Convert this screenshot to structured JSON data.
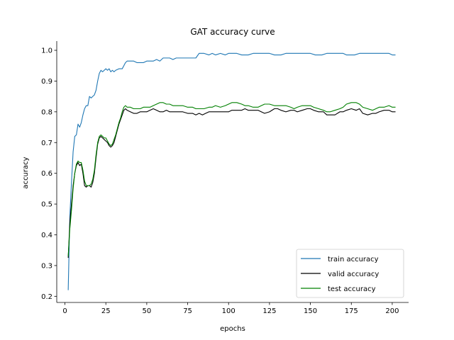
{
  "chart_data": {
    "type": "line",
    "title": "GAT accuracy curve",
    "xlabel": "epochs",
    "ylabel": "accuracy",
    "xlim": [
      -5,
      210
    ],
    "ylim": [
      0.18,
      1.03
    ],
    "xticks": [
      0,
      25,
      50,
      75,
      100,
      125,
      150,
      175,
      200
    ],
    "yticks": [
      0.2,
      0.3,
      0.4,
      0.5,
      0.6,
      0.7,
      0.8,
      0.9,
      1.0
    ],
    "xtick_labels": [
      "0",
      "25",
      "50",
      "75",
      "100",
      "125",
      "150",
      "175",
      "200"
    ],
    "ytick_labels": [
      "0.2",
      "0.3",
      "0.4",
      "0.5",
      "0.6",
      "0.7",
      "0.8",
      "0.9",
      "1.0"
    ],
    "grid": false,
    "legend_position": "lower-right",
    "series": [
      {
        "name": "train accuracy",
        "color": "#1f77b4",
        "points": [
          [
            2,
            0.22
          ],
          [
            3,
            0.46
          ],
          [
            4,
            0.57
          ],
          [
            5,
            0.67
          ],
          [
            6,
            0.72
          ],
          [
            7,
            0.725
          ],
          [
            8,
            0.76
          ],
          [
            9,
            0.75
          ],
          [
            10,
            0.765
          ],
          [
            11,
            0.79
          ],
          [
            12,
            0.81
          ],
          [
            13,
            0.82
          ],
          [
            14,
            0.82
          ],
          [
            15,
            0.85
          ],
          [
            16,
            0.845
          ],
          [
            17,
            0.85
          ],
          [
            18,
            0.855
          ],
          [
            19,
            0.87
          ],
          [
            20,
            0.9
          ],
          [
            21,
            0.925
          ],
          [
            22,
            0.935
          ],
          [
            23,
            0.93
          ],
          [
            24,
            0.935
          ],
          [
            25,
            0.94
          ],
          [
            26,
            0.935
          ],
          [
            27,
            0.94
          ],
          [
            28,
            0.93
          ],
          [
            29,
            0.935
          ],
          [
            30,
            0.93
          ],
          [
            31,
            0.935
          ],
          [
            33,
            0.94
          ],
          [
            35,
            0.94
          ],
          [
            36,
            0.95
          ],
          [
            37,
            0.96
          ],
          [
            38,
            0.965
          ],
          [
            40,
            0.965
          ],
          [
            42,
            0.965
          ],
          [
            44,
            0.96
          ],
          [
            46,
            0.96
          ],
          [
            48,
            0.96
          ],
          [
            50,
            0.965
          ],
          [
            52,
            0.965
          ],
          [
            54,
            0.965
          ],
          [
            56,
            0.97
          ],
          [
            58,
            0.965
          ],
          [
            60,
            0.975
          ],
          [
            62,
            0.975
          ],
          [
            64,
            0.975
          ],
          [
            66,
            0.97
          ],
          [
            68,
            0.975
          ],
          [
            70,
            0.975
          ],
          [
            75,
            0.975
          ],
          [
            80,
            0.975
          ],
          [
            82,
            0.99
          ],
          [
            85,
            0.99
          ],
          [
            88,
            0.985
          ],
          [
            90,
            0.99
          ],
          [
            92,
            0.985
          ],
          [
            95,
            0.99
          ],
          [
            98,
            0.985
          ],
          [
            100,
            0.99
          ],
          [
            105,
            0.99
          ],
          [
            108,
            0.985
          ],
          [
            112,
            0.985
          ],
          [
            115,
            0.99
          ],
          [
            120,
            0.99
          ],
          [
            125,
            0.99
          ],
          [
            128,
            0.985
          ],
          [
            132,
            0.985
          ],
          [
            135,
            0.99
          ],
          [
            140,
            0.99
          ],
          [
            145,
            0.99
          ],
          [
            150,
            0.99
          ],
          [
            153,
            0.985
          ],
          [
            157,
            0.985
          ],
          [
            160,
            0.99
          ],
          [
            165,
            0.99
          ],
          [
            170,
            0.99
          ],
          [
            172,
            0.985
          ],
          [
            177,
            0.985
          ],
          [
            180,
            0.99
          ],
          [
            185,
            0.99
          ],
          [
            190,
            0.99
          ],
          [
            195,
            0.99
          ],
          [
            198,
            0.99
          ],
          [
            200,
            0.985
          ],
          [
            202,
            0.985
          ]
        ]
      },
      {
        "name": "valid accuracy",
        "color": "#000000",
        "points": [
          [
            2,
            0.325
          ],
          [
            3,
            0.44
          ],
          [
            4,
            0.5
          ],
          [
            5,
            0.56
          ],
          [
            6,
            0.6
          ],
          [
            7,
            0.625
          ],
          [
            8,
            0.635
          ],
          [
            9,
            0.625
          ],
          [
            10,
            0.63
          ],
          [
            11,
            0.6
          ],
          [
            12,
            0.56
          ],
          [
            13,
            0.555
          ],
          [
            14,
            0.56
          ],
          [
            15,
            0.56
          ],
          [
            16,
            0.555
          ],
          [
            17,
            0.57
          ],
          [
            18,
            0.6
          ],
          [
            19,
            0.65
          ],
          [
            20,
            0.695
          ],
          [
            21,
            0.715
          ],
          [
            22,
            0.72
          ],
          [
            23,
            0.715
          ],
          [
            24,
            0.71
          ],
          [
            25,
            0.705
          ],
          [
            26,
            0.7
          ],
          [
            27,
            0.69
          ],
          [
            28,
            0.685
          ],
          [
            29,
            0.69
          ],
          [
            30,
            0.7
          ],
          [
            31,
            0.72
          ],
          [
            32,
            0.74
          ],
          [
            33,
            0.76
          ],
          [
            34,
            0.775
          ],
          [
            35,
            0.79
          ],
          [
            36,
            0.805
          ],
          [
            37,
            0.81
          ],
          [
            38,
            0.805
          ],
          [
            40,
            0.8
          ],
          [
            42,
            0.795
          ],
          [
            44,
            0.795
          ],
          [
            46,
            0.8
          ],
          [
            48,
            0.8
          ],
          [
            50,
            0.8
          ],
          [
            52,
            0.805
          ],
          [
            54,
            0.81
          ],
          [
            56,
            0.805
          ],
          [
            58,
            0.8
          ],
          [
            60,
            0.8
          ],
          [
            62,
            0.805
          ],
          [
            64,
            0.8
          ],
          [
            66,
            0.8
          ],
          [
            68,
            0.8
          ],
          [
            70,
            0.8
          ],
          [
            72,
            0.8
          ],
          [
            75,
            0.795
          ],
          [
            78,
            0.795
          ],
          [
            80,
            0.79
          ],
          [
            82,
            0.795
          ],
          [
            84,
            0.79
          ],
          [
            86,
            0.795
          ],
          [
            88,
            0.8
          ],
          [
            90,
            0.8
          ],
          [
            92,
            0.8
          ],
          [
            95,
            0.8
          ],
          [
            98,
            0.8
          ],
          [
            100,
            0.8
          ],
          [
            102,
            0.805
          ],
          [
            105,
            0.805
          ],
          [
            108,
            0.805
          ],
          [
            110,
            0.81
          ],
          [
            112,
            0.805
          ],
          [
            115,
            0.805
          ],
          [
            118,
            0.805
          ],
          [
            120,
            0.8
          ],
          [
            122,
            0.795
          ],
          [
            125,
            0.8
          ],
          [
            128,
            0.81
          ],
          [
            130,
            0.81
          ],
          [
            132,
            0.805
          ],
          [
            135,
            0.8
          ],
          [
            138,
            0.805
          ],
          [
            140,
            0.805
          ],
          [
            142,
            0.8
          ],
          [
            145,
            0.805
          ],
          [
            148,
            0.81
          ],
          [
            150,
            0.81
          ],
          [
            152,
            0.805
          ],
          [
            155,
            0.8
          ],
          [
            158,
            0.8
          ],
          [
            160,
            0.79
          ],
          [
            162,
            0.79
          ],
          [
            165,
            0.79
          ],
          [
            168,
            0.8
          ],
          [
            170,
            0.8
          ],
          [
            172,
            0.805
          ],
          [
            175,
            0.81
          ],
          [
            178,
            0.805
          ],
          [
            180,
            0.81
          ],
          [
            182,
            0.795
          ],
          [
            185,
            0.79
          ],
          [
            188,
            0.795
          ],
          [
            190,
            0.795
          ],
          [
            192,
            0.8
          ],
          [
            195,
            0.805
          ],
          [
            198,
            0.805
          ],
          [
            200,
            0.8
          ],
          [
            202,
            0.8
          ]
        ]
      },
      {
        "name": "test accuracy",
        "color": "#008000",
        "points": [
          [
            2,
            0.33
          ],
          [
            3,
            0.42
          ],
          [
            4,
            0.48
          ],
          [
            5,
            0.55
          ],
          [
            6,
            0.6
          ],
          [
            7,
            0.63
          ],
          [
            8,
            0.64
          ],
          [
            9,
            0.635
          ],
          [
            10,
            0.635
          ],
          [
            11,
            0.61
          ],
          [
            12,
            0.575
          ],
          [
            13,
            0.56
          ],
          [
            14,
            0.56
          ],
          [
            15,
            0.56
          ],
          [
            16,
            0.565
          ],
          [
            17,
            0.58
          ],
          [
            18,
            0.61
          ],
          [
            19,
            0.66
          ],
          [
            20,
            0.7
          ],
          [
            21,
            0.72
          ],
          [
            22,
            0.725
          ],
          [
            23,
            0.72
          ],
          [
            24,
            0.715
          ],
          [
            25,
            0.715
          ],
          [
            26,
            0.705
          ],
          [
            27,
            0.695
          ],
          [
            28,
            0.69
          ],
          [
            29,
            0.695
          ],
          [
            30,
            0.71
          ],
          [
            31,
            0.725
          ],
          [
            32,
            0.745
          ],
          [
            33,
            0.765
          ],
          [
            34,
            0.78
          ],
          [
            35,
            0.8
          ],
          [
            36,
            0.815
          ],
          [
            37,
            0.82
          ],
          [
            38,
            0.815
          ],
          [
            40,
            0.815
          ],
          [
            42,
            0.81
          ],
          [
            44,
            0.81
          ],
          [
            46,
            0.81
          ],
          [
            48,
            0.815
          ],
          [
            50,
            0.815
          ],
          [
            52,
            0.815
          ],
          [
            54,
            0.82
          ],
          [
            56,
            0.825
          ],
          [
            58,
            0.83
          ],
          [
            60,
            0.83
          ],
          [
            62,
            0.825
          ],
          [
            64,
            0.825
          ],
          [
            66,
            0.82
          ],
          [
            68,
            0.82
          ],
          [
            70,
            0.82
          ],
          [
            72,
            0.82
          ],
          [
            75,
            0.815
          ],
          [
            78,
            0.815
          ],
          [
            80,
            0.81
          ],
          [
            82,
            0.81
          ],
          [
            85,
            0.81
          ],
          [
            88,
            0.815
          ],
          [
            90,
            0.815
          ],
          [
            92,
            0.82
          ],
          [
            95,
            0.815
          ],
          [
            98,
            0.82
          ],
          [
            100,
            0.825
          ],
          [
            102,
            0.83
          ],
          [
            105,
            0.83
          ],
          [
            108,
            0.825
          ],
          [
            110,
            0.82
          ],
          [
            112,
            0.82
          ],
          [
            115,
            0.815
          ],
          [
            118,
            0.815
          ],
          [
            120,
            0.82
          ],
          [
            122,
            0.825
          ],
          [
            125,
            0.825
          ],
          [
            128,
            0.82
          ],
          [
            130,
            0.82
          ],
          [
            132,
            0.82
          ],
          [
            135,
            0.82
          ],
          [
            138,
            0.815
          ],
          [
            140,
            0.81
          ],
          [
            142,
            0.815
          ],
          [
            145,
            0.82
          ],
          [
            148,
            0.82
          ],
          [
            150,
            0.82
          ],
          [
            152,
            0.815
          ],
          [
            155,
            0.81
          ],
          [
            158,
            0.805
          ],
          [
            160,
            0.8
          ],
          [
            162,
            0.8
          ],
          [
            165,
            0.805
          ],
          [
            168,
            0.81
          ],
          [
            170,
            0.815
          ],
          [
            172,
            0.825
          ],
          [
            175,
            0.83
          ],
          [
            178,
            0.83
          ],
          [
            180,
            0.825
          ],
          [
            182,
            0.815
          ],
          [
            185,
            0.81
          ],
          [
            188,
            0.805
          ],
          [
            190,
            0.81
          ],
          [
            192,
            0.815
          ],
          [
            195,
            0.815
          ],
          [
            198,
            0.82
          ],
          [
            200,
            0.815
          ],
          [
            202,
            0.815
          ]
        ]
      }
    ]
  }
}
